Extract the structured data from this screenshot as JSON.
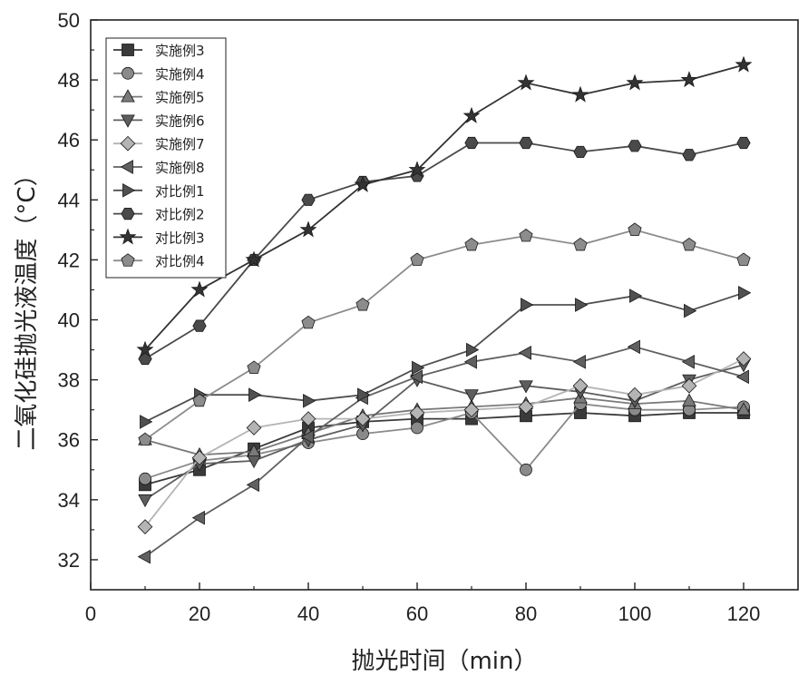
{
  "chart_data": {
    "type": "line",
    "title": "",
    "xlabel": "抛光时间（min）",
    "ylabel": "二氧化硅抛光液温度（°C）",
    "xlim": [
      0,
      130
    ],
    "ylim": [
      31,
      50
    ],
    "x_ticks": [
      0,
      20,
      40,
      60,
      80,
      100,
      120
    ],
    "y_ticks": [
      32,
      34,
      36,
      38,
      40,
      42,
      44,
      46,
      48,
      50
    ],
    "legend_position": "top-left",
    "x": [
      10,
      20,
      30,
      40,
      50,
      60,
      70,
      80,
      90,
      100,
      110,
      120
    ],
    "series": [
      {
        "name": "实施例3",
        "marker": "square",
        "color": "#3a3a3a",
        "values": [
          34.5,
          35.0,
          35.7,
          36.4,
          36.6,
          36.7,
          36.7,
          36.8,
          36.9,
          36.8,
          36.9,
          36.9
        ]
      },
      {
        "name": "实施例4",
        "marker": "circle",
        "color": "#8a8a8a",
        "values": [
          34.7,
          35.3,
          35.5,
          35.9,
          36.2,
          36.4,
          36.9,
          35.0,
          37.2,
          37.0,
          37.0,
          37.1
        ]
      },
      {
        "name": "实施例5",
        "marker": "triangle-up",
        "color": "#7a7a7a",
        "values": [
          36.0,
          35.5,
          35.6,
          36.2,
          36.8,
          37.0,
          37.1,
          37.2,
          37.4,
          37.2,
          37.3,
          37.0
        ]
      },
      {
        "name": "实施例6",
        "marker": "triangle-down",
        "color": "#5e5e5e",
        "values": [
          34.0,
          35.2,
          35.3,
          36.0,
          36.5,
          38.0,
          37.5,
          37.8,
          37.6,
          37.3,
          38.0,
          38.5
        ]
      },
      {
        "name": "实施例7",
        "marker": "diamond",
        "color": "#b4b4b4",
        "values": [
          33.1,
          35.4,
          36.4,
          36.7,
          36.7,
          36.9,
          37.0,
          37.1,
          37.8,
          37.5,
          37.8,
          38.7
        ]
      },
      {
        "name": "实施例8",
        "marker": "triangle-left",
        "color": "#606060",
        "values": [
          32.1,
          33.4,
          34.5,
          36.1,
          37.4,
          38.1,
          38.6,
          38.9,
          38.6,
          39.1,
          38.6,
          38.1
        ]
      },
      {
        "name": "对比例1",
        "marker": "triangle-right",
        "color": "#505050",
        "values": [
          36.6,
          37.5,
          37.5,
          37.3,
          37.5,
          38.4,
          39.0,
          40.5,
          40.5,
          40.8,
          40.3,
          40.9
        ]
      },
      {
        "name": "对比例2",
        "marker": "hexagon",
        "color": "#4a4a4a",
        "values": [
          38.7,
          39.8,
          42.0,
          44.0,
          44.6,
          44.8,
          45.9,
          45.9,
          45.6,
          45.8,
          45.5,
          45.9
        ]
      },
      {
        "name": "对比例3",
        "marker": "star",
        "color": "#333333",
        "values": [
          39.0,
          41.0,
          42.0,
          43.0,
          44.5,
          45.0,
          46.8,
          47.9,
          47.5,
          47.9,
          48.0,
          48.5
        ]
      },
      {
        "name": "对比例4",
        "marker": "pentagon",
        "color": "#8c8c8c",
        "values": [
          36.0,
          37.3,
          38.4,
          39.9,
          40.5,
          42.0,
          42.5,
          42.8,
          42.5,
          43.0,
          42.5,
          42.0
        ]
      }
    ]
  }
}
